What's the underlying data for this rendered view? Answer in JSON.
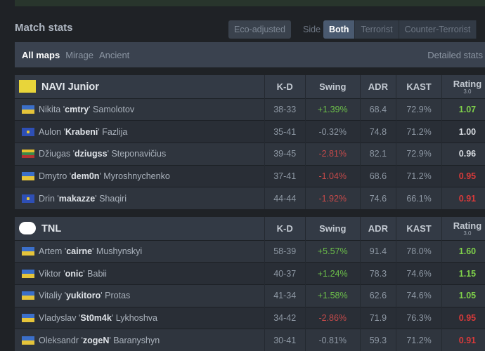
{
  "header": {
    "title": "Match stats",
    "eco_label": "Eco-adjusted",
    "side_label": "Side",
    "sides": [
      "Both",
      "Terrorist",
      "Counter-Terrorist"
    ],
    "active_side": "Both"
  },
  "maps": {
    "items": [
      "All maps",
      "Mirage",
      "Ancient"
    ],
    "active": "All maps",
    "detailed_label": "Detailed stats"
  },
  "columns": [
    "K-D",
    "Swing",
    "ADR",
    "KAST",
    "Rating"
  ],
  "rating_version": "3.0",
  "teams": [
    {
      "name": "NAVI Junior",
      "logo_text": "NAVI",
      "players": [
        {
          "flag": "ua",
          "first": "Nikita",
          "nick": "cmtry",
          "last": "Samolotov",
          "kd": "38-33",
          "swing": "+1.39%",
          "adr": "68.4",
          "kast": "72.9%",
          "rating": "1.07"
        },
        {
          "flag": "xk",
          "first": "Aulon",
          "nick": "Krabeni",
          "last": "Fazlija",
          "kd": "35-41",
          "swing": "-0.32%",
          "adr": "74.8",
          "kast": "71.2%",
          "rating": "1.00"
        },
        {
          "flag": "lt",
          "first": "Džiugas",
          "nick": "dziugss",
          "last": "Steponavičius",
          "kd": "39-45",
          "swing": "-2.81%",
          "adr": "82.1",
          "kast": "72.9%",
          "rating": "0.96"
        },
        {
          "flag": "ua",
          "first": "Dmytro",
          "nick": "dem0n",
          "last": "Myroshnychenko",
          "kd": "37-41",
          "swing": "-1.04%",
          "adr": "68.6",
          "kast": "71.2%",
          "rating": "0.95"
        },
        {
          "flag": "xk",
          "first": "Drin",
          "nick": "makazze",
          "last": "Shaqiri",
          "kd": "44-44",
          "swing": "-1.92%",
          "adr": "74.6",
          "kast": "66.1%",
          "rating": "0.91"
        }
      ]
    },
    {
      "name": "TNL",
      "logo_text": "TNL",
      "players": [
        {
          "flag": "ua",
          "first": "Artem",
          "nick": "cairne",
          "last": "Mushynskyi",
          "kd": "58-39",
          "swing": "+5.57%",
          "adr": "91.4",
          "kast": "78.0%",
          "rating": "1.60"
        },
        {
          "flag": "ua",
          "first": "Viktor",
          "nick": "onic",
          "last": "Babii",
          "kd": "40-37",
          "swing": "+1.24%",
          "adr": "78.3",
          "kast": "74.6%",
          "rating": "1.15"
        },
        {
          "flag": "ua",
          "first": "Vitaliy",
          "nick": "yukitoro",
          "last": "Protas",
          "kd": "41-34",
          "swing": "+1.58%",
          "adr": "62.6",
          "kast": "74.6%",
          "rating": "1.05"
        },
        {
          "flag": "ua",
          "first": "Vladyslav",
          "nick": "St0m4k",
          "last": "Lykhoshva",
          "kd": "34-42",
          "swing": "-2.86%",
          "adr": "71.9",
          "kast": "76.3%",
          "rating": "0.95"
        },
        {
          "flag": "ua",
          "first": "Oleksandr",
          "nick": "zogeN",
          "last": "Baranyshyn",
          "kd": "30-41",
          "swing": "-0.81%",
          "adr": "59.3",
          "kast": "71.2%",
          "rating": "0.91"
        }
      ]
    }
  ]
}
